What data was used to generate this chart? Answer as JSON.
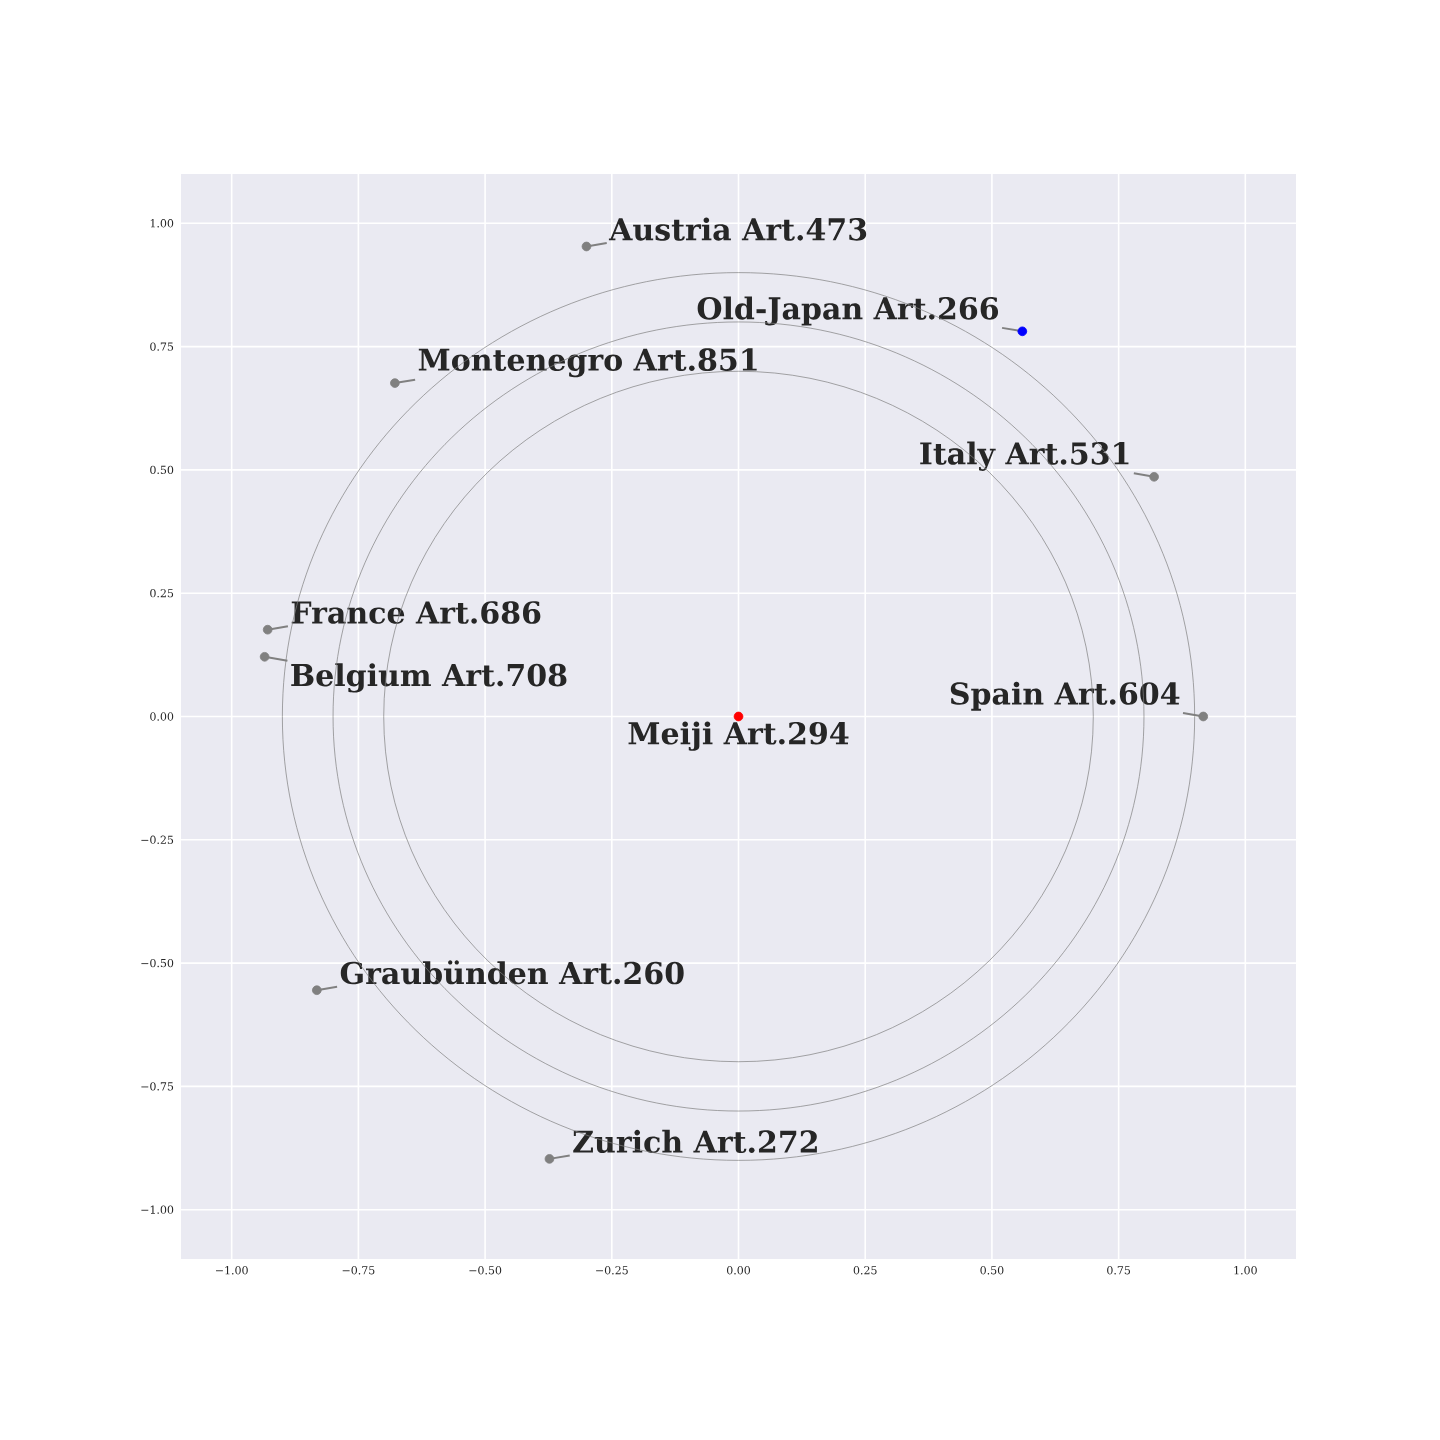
{
  "chart_data": {
    "type": "scatter",
    "xlim": [
      -1.1,
      1.1
    ],
    "ylim": [
      -1.1,
      1.1
    ],
    "xticks": [
      {
        "value": -1,
        "label": "−1.00"
      },
      {
        "value": -0.75,
        "label": "−0.75"
      },
      {
        "value": -0.5,
        "label": "−0.50"
      },
      {
        "value": -0.25,
        "label": "−0.25"
      },
      {
        "value": 0,
        "label": "0.00"
      },
      {
        "value": 0.25,
        "label": "0.25"
      },
      {
        "value": 0.5,
        "label": "0.50"
      },
      {
        "value": 0.75,
        "label": "0.75"
      },
      {
        "value": 1,
        "label": "1.00"
      }
    ],
    "yticks": [
      {
        "value": -1,
        "label": "−1.00"
      },
      {
        "value": -0.75,
        "label": "−0.75"
      },
      {
        "value": -0.5,
        "label": "−0.50"
      },
      {
        "value": -0.25,
        "label": "−0.25"
      },
      {
        "value": 0,
        "label": "0.00"
      },
      {
        "value": 0.25,
        "label": "0.25"
      },
      {
        "value": 0.5,
        "label": "0.50"
      },
      {
        "value": 0.75,
        "label": "0.75"
      },
      {
        "value": 1,
        "label": "1.00"
      }
    ],
    "grid": true,
    "series": [
      {
        "type": "scatter",
        "x": [
          -0.3,
          0.56,
          -0.678,
          0.82,
          -0.929,
          -0.935,
          0.917,
          0,
          -0.832,
          -0.373
        ],
        "values": [
          0.953,
          0.781,
          0.676,
          0.486,
          0.176,
          0.121,
          0,
          0,
          -0.555,
          -0.897
        ],
        "colors": [
          "#808080",
          "#0000ff",
          "#808080",
          "#808080",
          "#808080",
          "#808080",
          "#808080",
          "#ff0000",
          "#808080",
          "#808080"
        ]
      }
    ],
    "annotations": [
      {
        "text": "Austria Art.473",
        "x": -0.3,
        "y": 0.953
      },
      {
        "text": "Old-Japan Art.266",
        "x": 0.56,
        "y": 0.781
      },
      {
        "text": "Montenegro Art.851",
        "x": -0.678,
        "y": 0.676
      },
      {
        "text": "Italy Art.531",
        "x": 0.82,
        "y": 0.486
      },
      {
        "text": "France Art.686",
        "x": -0.929,
        "y": 0.176
      },
      {
        "text": "Belgium Art.708",
        "x": -0.935,
        "y": 0.121
      },
      {
        "text": "Spain Art.604",
        "x": 0.917,
        "y": 0
      },
      {
        "text": "Meiji Art.294",
        "x": 0,
        "y": 0
      },
      {
        "text": "Graubünden Art.260",
        "x": -0.832,
        "y": -0.555
      },
      {
        "text": "Zurich Art.272",
        "x": -0.373,
        "y": -0.897
      }
    ]
  }
}
